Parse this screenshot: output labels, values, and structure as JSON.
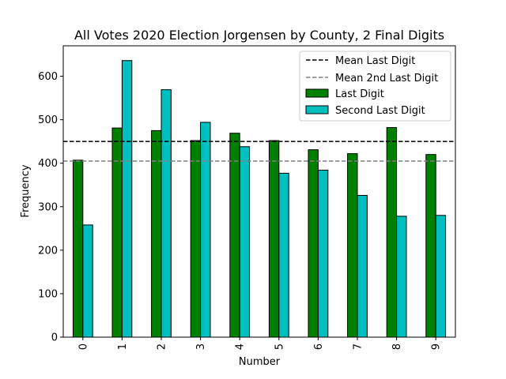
{
  "chart_data": {
    "type": "bar",
    "title": "All Votes 2020 Election Jorgensen by County, 2 Final Digits",
    "xlabel": "Number",
    "ylabel": "Frequency",
    "categories": [
      "0",
      "1",
      "2",
      "3",
      "4",
      "5",
      "6",
      "7",
      "8",
      "9"
    ],
    "ylim": [
      0,
      670
    ],
    "yticks": [
      0,
      100,
      200,
      300,
      400,
      500,
      600
    ],
    "grid": false,
    "legend_position": "top-right",
    "series": [
      {
        "name": "Last Digit",
        "color": "#008000",
        "values": [
          407,
          481,
          475,
          452,
          469,
          452,
          431,
          422,
          482,
          420
        ]
      },
      {
        "name": "Second Last Digit",
        "color": "#00bfbf",
        "values": [
          258,
          636,
          569,
          494,
          438,
          377,
          384,
          326,
          278,
          280
        ]
      }
    ],
    "reference_lines": [
      {
        "name": "Mean Last Digit",
        "value": 450,
        "color": "#000000",
        "style": "dashed"
      },
      {
        "name": "Mean 2nd Last Digit",
        "value": 405,
        "color": "#808080",
        "style": "dashed"
      }
    ]
  }
}
